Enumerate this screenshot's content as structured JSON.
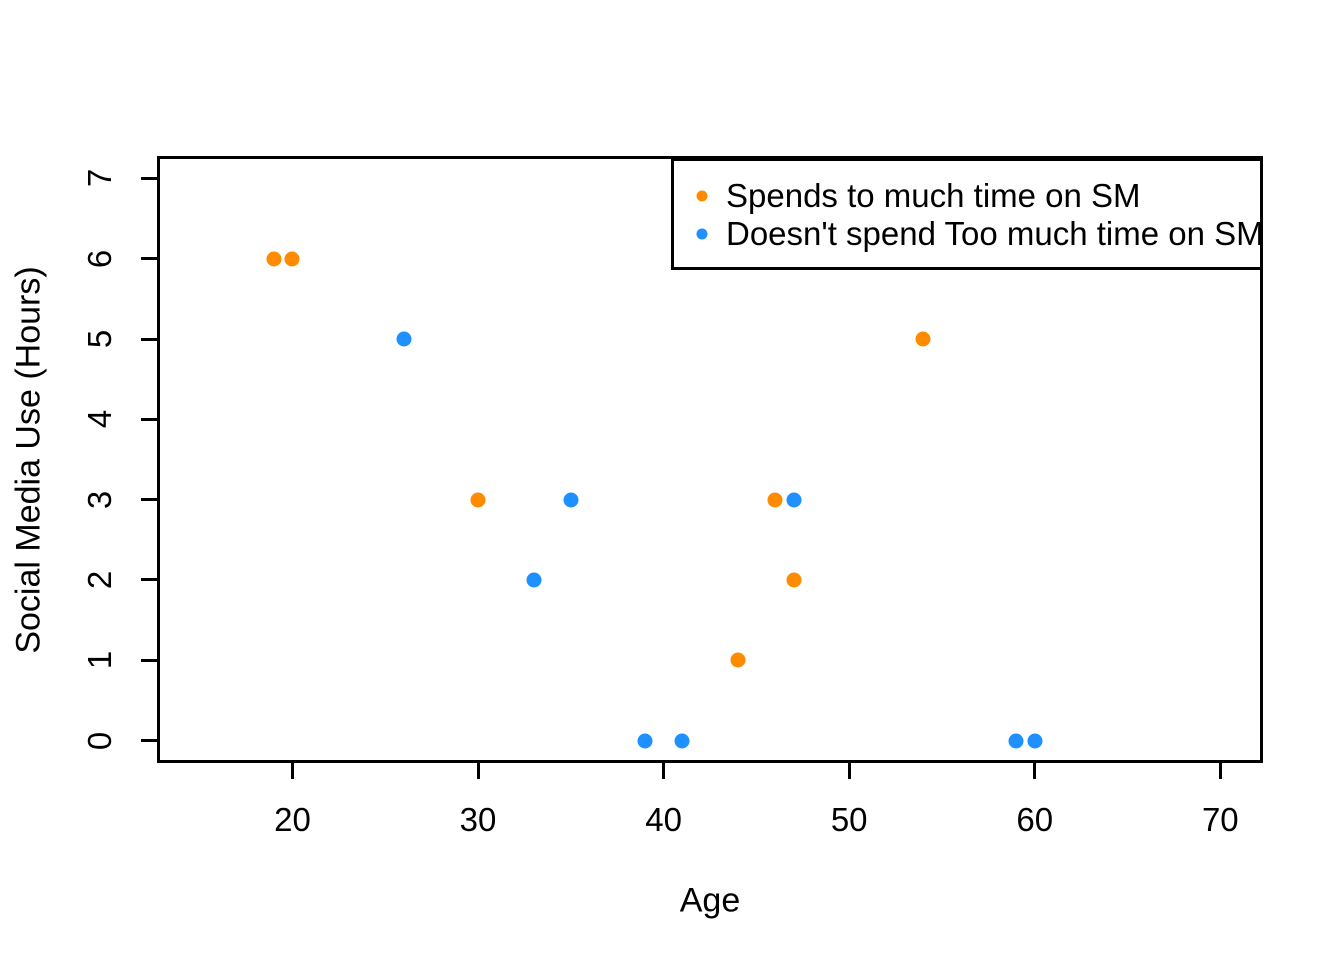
{
  "chart_data": {
    "type": "scatter",
    "title": "",
    "xlabel": "Age",
    "ylabel": "Social Media Use (Hours)",
    "xlim": [
      12.7,
      72.3
    ],
    "ylim": [
      -0.28,
      7.28
    ],
    "x_ticks": [
      20,
      30,
      40,
      50,
      60,
      70
    ],
    "y_ticks": [
      0,
      1,
      2,
      3,
      4,
      5,
      6,
      7
    ],
    "grid": false,
    "legend_position": "top-right",
    "axis_color": "#000000",
    "background_color": "#FFFFFF",
    "series": [
      {
        "name": "Spends to much time on SM",
        "color": "#FF8C00",
        "points": [
          [
            19,
            6
          ],
          [
            20,
            6
          ],
          [
            30,
            3
          ],
          [
            44,
            1
          ],
          [
            46,
            3
          ],
          [
            47,
            2
          ],
          [
            54,
            5
          ]
        ]
      },
      {
        "name": "Doesn't spend Too much time on SM",
        "color": "#1E90FF",
        "points": [
          [
            26,
            5
          ],
          [
            33,
            2
          ],
          [
            35,
            3
          ],
          [
            39,
            0
          ],
          [
            41,
            0
          ],
          [
            47,
            3
          ],
          [
            59,
            0
          ],
          [
            60,
            0
          ]
        ]
      }
    ]
  }
}
